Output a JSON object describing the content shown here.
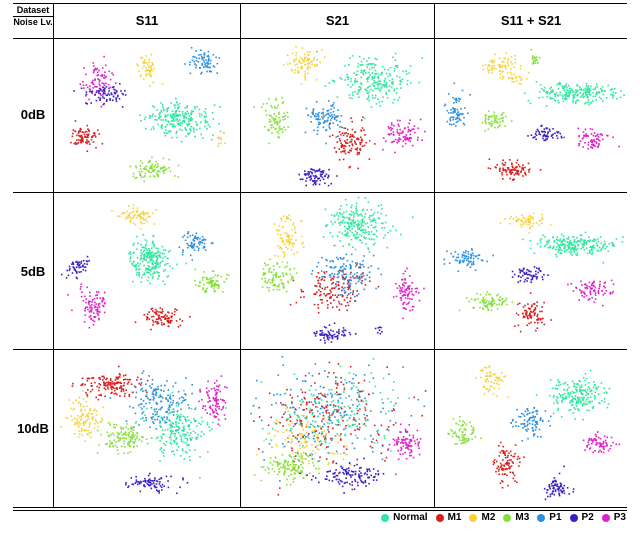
{
  "header": {
    "corner_top": "Dataset",
    "corner_bottom": "Noise Lv.",
    "columns": [
      "S11",
      "S21",
      "S11 + S21"
    ],
    "rows": [
      "0dB",
      "5dB",
      "10dB"
    ]
  },
  "legend": [
    {
      "label": "Normal",
      "color": "#2ee8a0"
    },
    {
      "label": "M1",
      "color": "#d91e1e"
    },
    {
      "label": "M2",
      "color": "#f5d23c"
    },
    {
      "label": "M3",
      "color": "#86e03a"
    },
    {
      "label": "P1",
      "color": "#2b8fe0"
    },
    {
      "label": "P2",
      "color": "#3a1fc2"
    },
    {
      "label": "P3",
      "color": "#e020c8"
    }
  ],
  "chart_data": {
    "type": "scatter",
    "description_of_grid": "3x3 grid of t-SNE style scatter plots, rows = noise level, columns = dataset",
    "series_names": [
      "Normal",
      "M1",
      "M2",
      "M3",
      "P1",
      "P2",
      "P3"
    ],
    "xlabel": "",
    "ylabel": "",
    "panels": [
      {
        "row": "0dB",
        "col": "S11",
        "clusters": [
          {
            "series": "P3",
            "cx": 0.22,
            "cy": 0.28,
            "rx": 0.08,
            "ry": 0.14,
            "n": 90
          },
          {
            "series": "P2",
            "cx": 0.26,
            "cy": 0.36,
            "rx": 0.12,
            "ry": 0.06,
            "n": 70
          },
          {
            "series": "M2",
            "cx": 0.5,
            "cy": 0.18,
            "rx": 0.06,
            "ry": 0.09,
            "n": 50
          },
          {
            "series": "P1",
            "cx": 0.81,
            "cy": 0.14,
            "rx": 0.08,
            "ry": 0.08,
            "n": 70
          },
          {
            "series": "Normal",
            "cx": 0.67,
            "cy": 0.53,
            "rx": 0.18,
            "ry": 0.11,
            "n": 230
          },
          {
            "series": "M1",
            "cx": 0.15,
            "cy": 0.64,
            "rx": 0.08,
            "ry": 0.07,
            "n": 80
          },
          {
            "series": "M3",
            "cx": 0.52,
            "cy": 0.86,
            "rx": 0.12,
            "ry": 0.07,
            "n": 90
          },
          {
            "series": "M2",
            "cx": 0.9,
            "cy": 0.66,
            "rx": 0.03,
            "ry": 0.04,
            "n": 12
          }
        ]
      },
      {
        "row": "0dB",
        "col": "S21",
        "clusters": [
          {
            "series": "M2",
            "cx": 0.31,
            "cy": 0.14,
            "rx": 0.09,
            "ry": 0.1,
            "n": 80
          },
          {
            "series": "Normal",
            "cx": 0.68,
            "cy": 0.26,
            "rx": 0.18,
            "ry": 0.14,
            "n": 230
          },
          {
            "series": "M3",
            "cx": 0.17,
            "cy": 0.53,
            "rx": 0.07,
            "ry": 0.14,
            "n": 80
          },
          {
            "series": "P1",
            "cx": 0.43,
            "cy": 0.51,
            "rx": 0.1,
            "ry": 0.1,
            "n": 100
          },
          {
            "series": "M1",
            "cx": 0.56,
            "cy": 0.68,
            "rx": 0.1,
            "ry": 0.14,
            "n": 110
          },
          {
            "series": "P3",
            "cx": 0.84,
            "cy": 0.62,
            "rx": 0.1,
            "ry": 0.08,
            "n": 90
          },
          {
            "series": "P2",
            "cx": 0.38,
            "cy": 0.9,
            "rx": 0.08,
            "ry": 0.06,
            "n": 80
          }
        ]
      },
      {
        "row": "0dB",
        "col": "S11 + S21",
        "clusters": [
          {
            "series": "M3",
            "cx": 0.52,
            "cy": 0.13,
            "rx": 0.03,
            "ry": 0.04,
            "n": 20
          },
          {
            "series": "M2",
            "cx": 0.33,
            "cy": 0.17,
            "rx": 0.1,
            "ry": 0.08,
            "n": 70
          },
          {
            "series": "M2",
            "cx": 0.42,
            "cy": 0.25,
            "rx": 0.06,
            "ry": 0.03,
            "n": 20
          },
          {
            "series": "Normal",
            "cx": 0.74,
            "cy": 0.35,
            "rx": 0.2,
            "ry": 0.06,
            "n": 230
          },
          {
            "series": "P1",
            "cx": 0.1,
            "cy": 0.48,
            "rx": 0.05,
            "ry": 0.12,
            "n": 70
          },
          {
            "series": "M3",
            "cx": 0.3,
            "cy": 0.53,
            "rx": 0.06,
            "ry": 0.06,
            "n": 60
          },
          {
            "series": "P2",
            "cx": 0.57,
            "cy": 0.62,
            "rx": 0.1,
            "ry": 0.05,
            "n": 60
          },
          {
            "series": "P3",
            "cx": 0.82,
            "cy": 0.66,
            "rx": 0.1,
            "ry": 0.08,
            "n": 70
          },
          {
            "series": "M1",
            "cx": 0.4,
            "cy": 0.86,
            "rx": 0.1,
            "ry": 0.06,
            "n": 90
          }
        ]
      },
      {
        "row": "5dB",
        "col": "S11",
        "clusters": [
          {
            "series": "M2",
            "cx": 0.44,
            "cy": 0.13,
            "rx": 0.1,
            "ry": 0.06,
            "n": 70
          },
          {
            "series": "P1",
            "cx": 0.76,
            "cy": 0.32,
            "rx": 0.08,
            "ry": 0.07,
            "n": 70
          },
          {
            "series": "Normal",
            "cx": 0.51,
            "cy": 0.42,
            "rx": 0.12,
            "ry": 0.14,
            "n": 230
          },
          {
            "series": "P2",
            "cx": 0.12,
            "cy": 0.47,
            "rx": 0.06,
            "ry": 0.06,
            "n": 55
          },
          {
            "series": "M3",
            "cx": 0.85,
            "cy": 0.57,
            "rx": 0.08,
            "ry": 0.06,
            "n": 80
          },
          {
            "series": "P3",
            "cx": 0.2,
            "cy": 0.73,
            "rx": 0.08,
            "ry": 0.12,
            "n": 90
          },
          {
            "series": "M1",
            "cx": 0.57,
            "cy": 0.8,
            "rx": 0.1,
            "ry": 0.06,
            "n": 90
          }
        ]
      },
      {
        "row": "5dB",
        "col": "S21",
        "clusters": [
          {
            "series": "Normal",
            "cx": 0.6,
            "cy": 0.18,
            "rx": 0.15,
            "ry": 0.15,
            "n": 230
          },
          {
            "series": "M2",
            "cx": 0.24,
            "cy": 0.28,
            "rx": 0.07,
            "ry": 0.15,
            "n": 80
          },
          {
            "series": "M3",
            "cx": 0.17,
            "cy": 0.54,
            "rx": 0.08,
            "ry": 0.1,
            "n": 90
          },
          {
            "series": "P1",
            "cx": 0.53,
            "cy": 0.52,
            "rx": 0.14,
            "ry": 0.13,
            "n": 150
          },
          {
            "series": "M1",
            "cx": 0.48,
            "cy": 0.62,
            "rx": 0.17,
            "ry": 0.14,
            "n": 130
          },
          {
            "series": "P3",
            "cx": 0.86,
            "cy": 0.62,
            "rx": 0.06,
            "ry": 0.12,
            "n": 80
          },
          {
            "series": "P2",
            "cx": 0.47,
            "cy": 0.91,
            "rx": 0.09,
            "ry": 0.05,
            "n": 70
          },
          {
            "series": "P2",
            "cx": 0.72,
            "cy": 0.88,
            "rx": 0.02,
            "ry": 0.03,
            "n": 8
          }
        ]
      },
      {
        "row": "5dB",
        "col": "S11 + S21",
        "clusters": [
          {
            "series": "M2",
            "cx": 0.47,
            "cy": 0.17,
            "rx": 0.12,
            "ry": 0.05,
            "n": 60
          },
          {
            "series": "Normal",
            "cx": 0.74,
            "cy": 0.32,
            "rx": 0.22,
            "ry": 0.06,
            "n": 230
          },
          {
            "series": "P1",
            "cx": 0.14,
            "cy": 0.42,
            "rx": 0.1,
            "ry": 0.06,
            "n": 70
          },
          {
            "series": "P2",
            "cx": 0.48,
            "cy": 0.52,
            "rx": 0.08,
            "ry": 0.05,
            "n": 60
          },
          {
            "series": "P3",
            "cx": 0.82,
            "cy": 0.62,
            "rx": 0.1,
            "ry": 0.08,
            "n": 80
          },
          {
            "series": "M3",
            "cx": 0.27,
            "cy": 0.7,
            "rx": 0.1,
            "ry": 0.06,
            "n": 80
          },
          {
            "series": "M1",
            "cx": 0.5,
            "cy": 0.78,
            "rx": 0.07,
            "ry": 0.08,
            "n": 80
          }
        ]
      },
      {
        "row": "10dB",
        "col": "S11",
        "clusters": [
          {
            "series": "M1",
            "cx": 0.3,
            "cy": 0.21,
            "rx": 0.17,
            "ry": 0.08,
            "n": 150
          },
          {
            "series": "P1",
            "cx": 0.57,
            "cy": 0.33,
            "rx": 0.16,
            "ry": 0.18,
            "n": 170
          },
          {
            "series": "Normal",
            "cx": 0.66,
            "cy": 0.5,
            "rx": 0.17,
            "ry": 0.17,
            "n": 200
          },
          {
            "series": "M2",
            "cx": 0.15,
            "cy": 0.43,
            "rx": 0.09,
            "ry": 0.13,
            "n": 110
          },
          {
            "series": "M3",
            "cx": 0.36,
            "cy": 0.55,
            "rx": 0.12,
            "ry": 0.1,
            "n": 120
          },
          {
            "series": "P3",
            "cx": 0.87,
            "cy": 0.31,
            "rx": 0.06,
            "ry": 0.13,
            "n": 90
          },
          {
            "series": "P2",
            "cx": 0.52,
            "cy": 0.85,
            "rx": 0.13,
            "ry": 0.05,
            "n": 80
          }
        ]
      },
      {
        "row": "10dB",
        "col": "S21",
        "clusters": [
          {
            "series": "P1",
            "cx": 0.45,
            "cy": 0.4,
            "rx": 0.34,
            "ry": 0.32,
            "n": 200
          },
          {
            "series": "M1",
            "cx": 0.45,
            "cy": 0.42,
            "rx": 0.34,
            "ry": 0.32,
            "n": 200
          },
          {
            "series": "Normal",
            "cx": 0.5,
            "cy": 0.38,
            "rx": 0.32,
            "ry": 0.28,
            "n": 160
          },
          {
            "series": "M2",
            "cx": 0.33,
            "cy": 0.58,
            "rx": 0.22,
            "ry": 0.18,
            "n": 120
          },
          {
            "series": "M3",
            "cx": 0.25,
            "cy": 0.74,
            "rx": 0.14,
            "ry": 0.1,
            "n": 120
          },
          {
            "series": "P2",
            "cx": 0.56,
            "cy": 0.8,
            "rx": 0.18,
            "ry": 0.08,
            "n": 120
          },
          {
            "series": "P3",
            "cx": 0.86,
            "cy": 0.6,
            "rx": 0.08,
            "ry": 0.1,
            "n": 90
          }
        ]
      },
      {
        "row": "10dB",
        "col": "S11 + S21",
        "clusters": [
          {
            "series": "M2",
            "cx": 0.29,
            "cy": 0.17,
            "rx": 0.07,
            "ry": 0.1,
            "n": 60
          },
          {
            "series": "Normal",
            "cx": 0.74,
            "cy": 0.27,
            "rx": 0.14,
            "ry": 0.12,
            "n": 200
          },
          {
            "series": "P1",
            "cx": 0.5,
            "cy": 0.45,
            "rx": 0.09,
            "ry": 0.1,
            "n": 90
          },
          {
            "series": "M3",
            "cx": 0.14,
            "cy": 0.52,
            "rx": 0.07,
            "ry": 0.08,
            "n": 70
          },
          {
            "series": "P3",
            "cx": 0.86,
            "cy": 0.6,
            "rx": 0.08,
            "ry": 0.06,
            "n": 70
          },
          {
            "series": "M1",
            "cx": 0.36,
            "cy": 0.72,
            "rx": 0.08,
            "ry": 0.12,
            "n": 90
          },
          {
            "series": "P2",
            "cx": 0.63,
            "cy": 0.88,
            "rx": 0.06,
            "ry": 0.08,
            "n": 70
          }
        ]
      }
    ]
  }
}
